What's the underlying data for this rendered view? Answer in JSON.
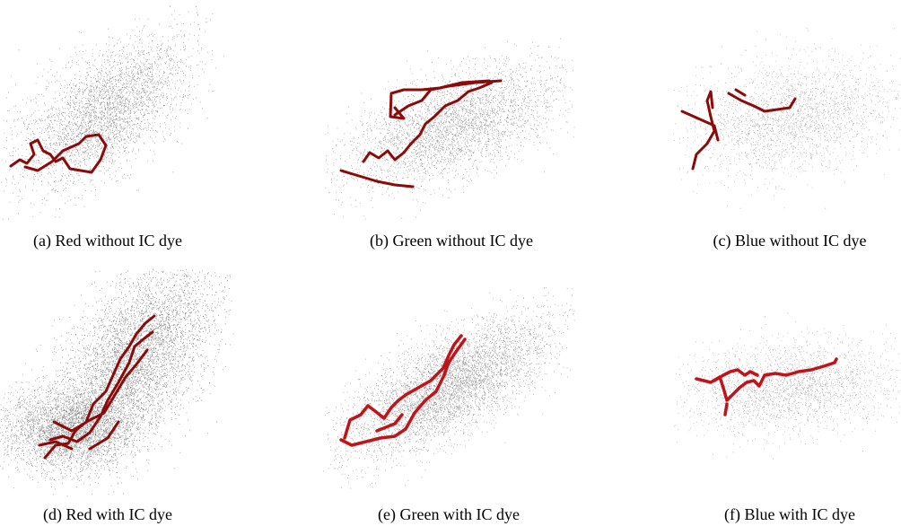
{
  "figure": {
    "subfigures": [
      {
        "caption": "(a) Red without IC dye"
      },
      {
        "caption": "(b) Green without IC dye"
      },
      {
        "caption": "(c) Blue without IC dye"
      },
      {
        "caption": "(d) Red with IC dye"
      },
      {
        "caption": "(e) Green with IC dye"
      },
      {
        "caption": "(f) Blue with IC dye"
      }
    ]
  }
}
